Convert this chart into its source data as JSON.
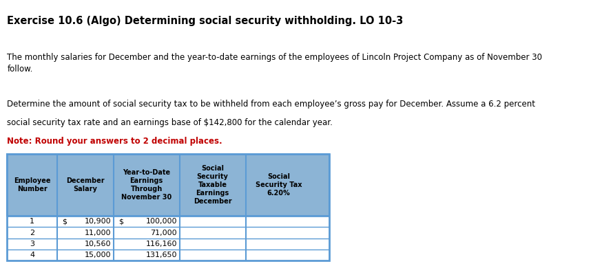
{
  "title": "Exercise 10.6 (Algo) Determining social security withholding. LO 10-3",
  "para1": "The monthly salaries for December and the year-to-date earnings of the employees of Lincoln Project Company as of November 30\nfollow.",
  "para2_line1": "Determine the amount of social security tax to be withheld from each employee’s gross pay for December. Assume a 6.2 percent",
  "para2_line2": "social security tax rate and an earnings base of $142,800 for the calendar year.",
  "para2_red": "Note: Round your answers to 2 decimal places.",
  "col_headers": [
    "Employee\nNumber",
    "December\nSalary",
    "Year-to-Date\nEarnings\nThrough\nNovember 30",
    "Social\nSecurity\nTaxable\nEarnings\nDecember",
    "Social\nSecurity Tax\n6.20%"
  ],
  "employees": [
    "1",
    "2",
    "3",
    "4"
  ],
  "december_salary_dollar": [
    "$",
    "",
    "",
    ""
  ],
  "december_salary_num": [
    "10,900",
    "11,000",
    "10,560",
    "15,000"
  ],
  "ytd_dollar": [
    "$",
    "",
    "",
    ""
  ],
  "ytd_num": [
    "100,000",
    "71,000",
    "116,160",
    "131,650"
  ],
  "header_bg": "#8CB4D5",
  "row_bg": "#FFFFFF",
  "border_color": "#5B9BD5",
  "text_color_black": "#000000",
  "text_color_red": "#C00000",
  "font_size_title": 10.5,
  "font_size_body": 8.5,
  "font_size_table": 8.0
}
